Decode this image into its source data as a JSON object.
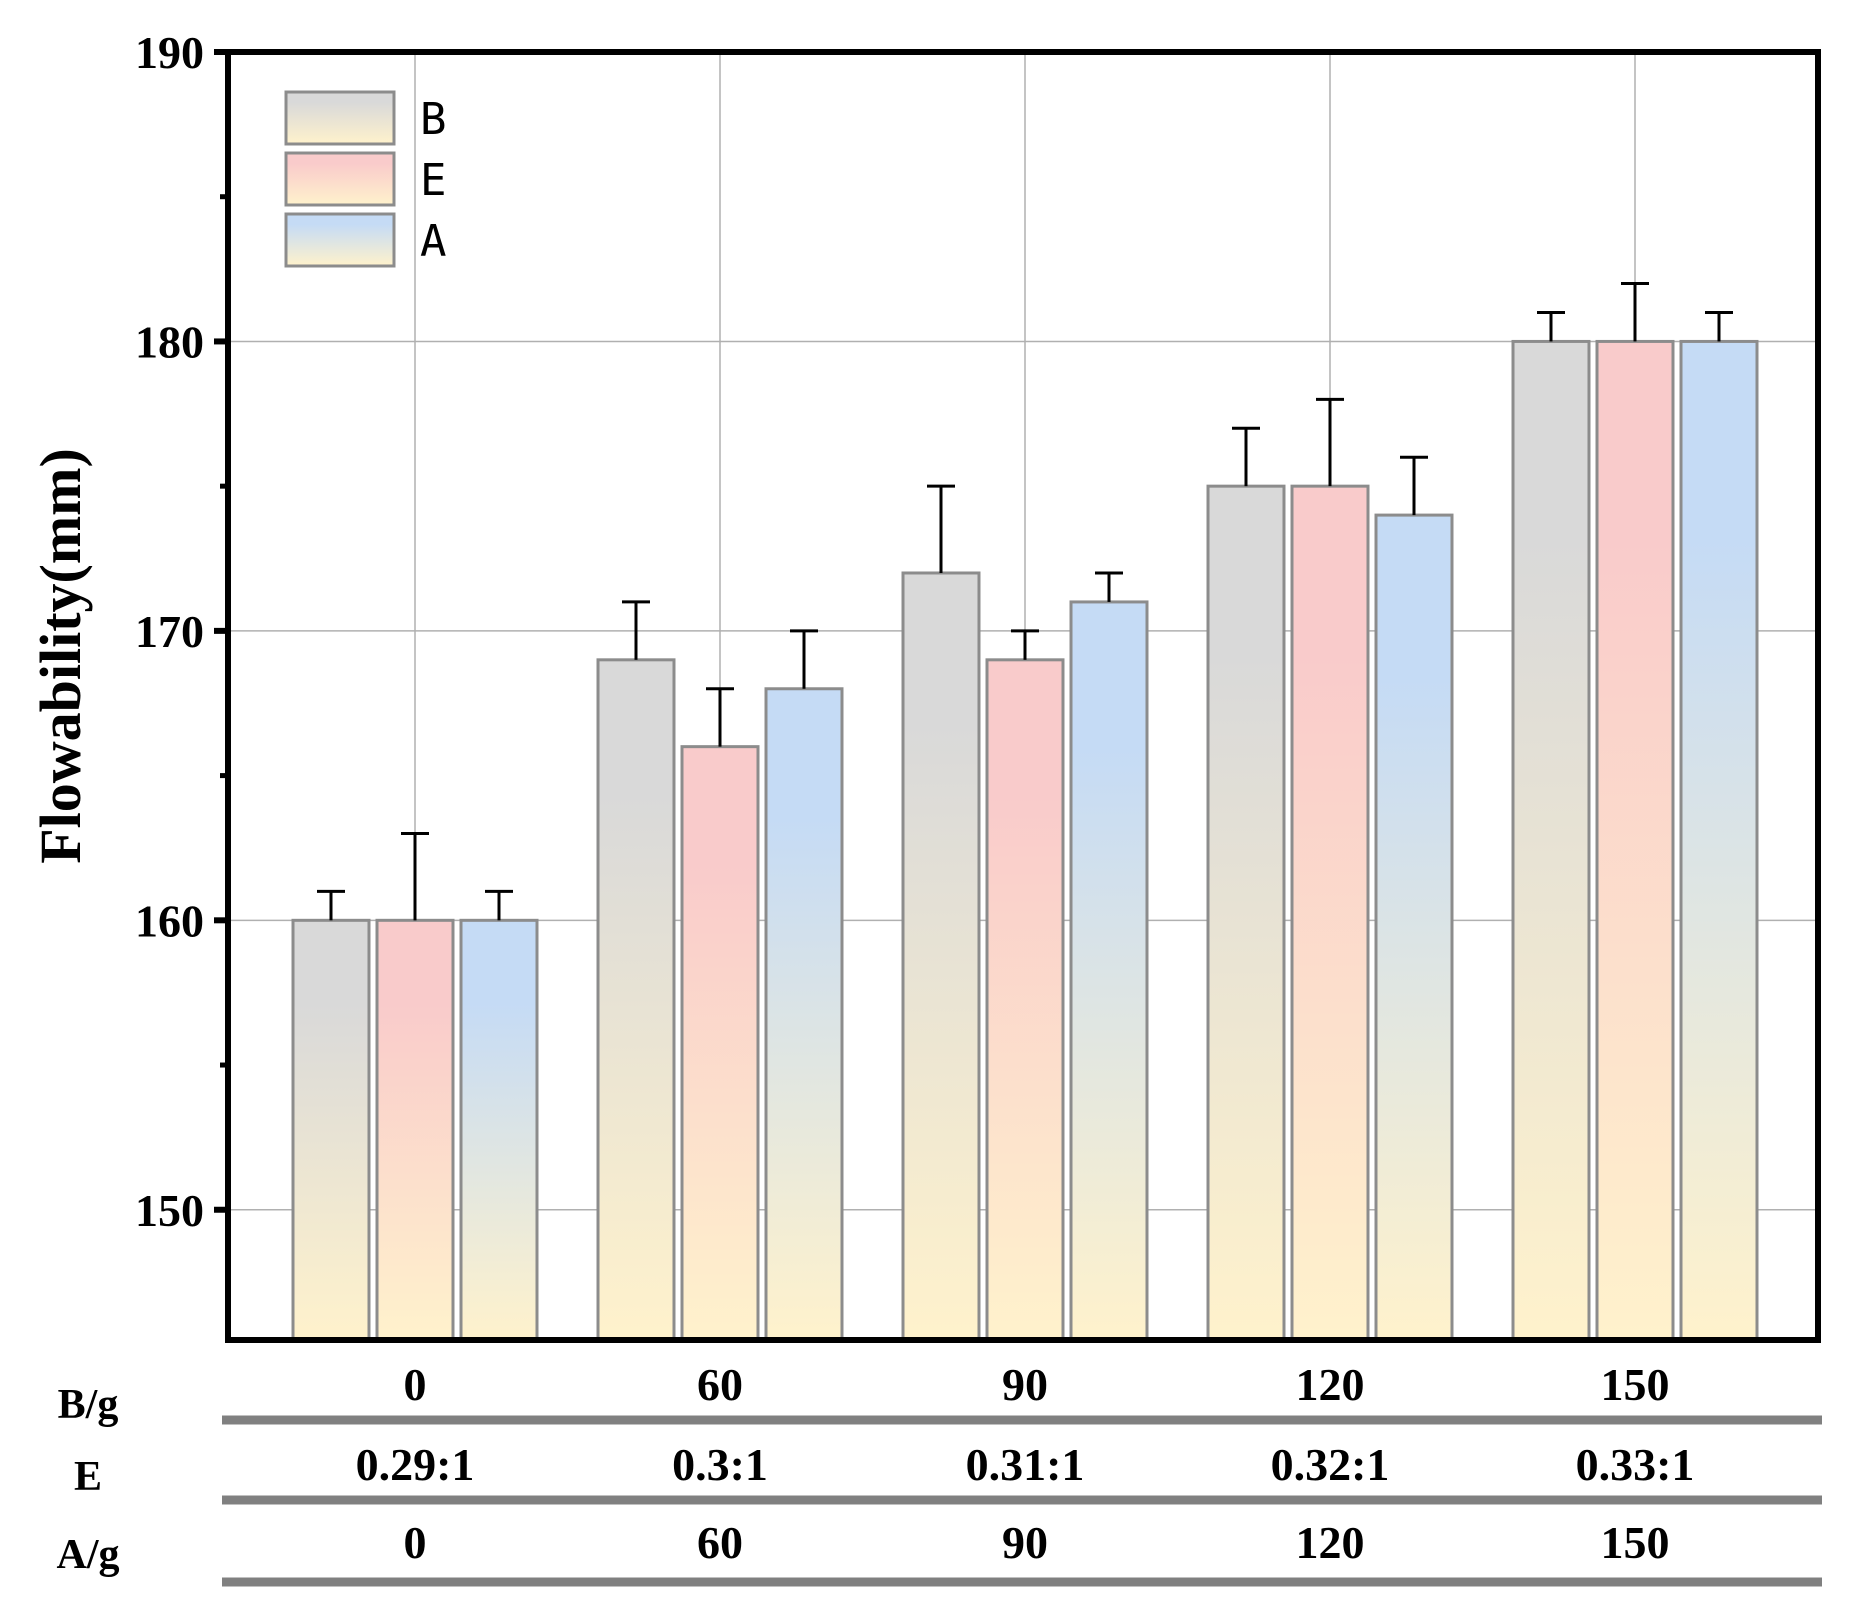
{
  "chart_data": {
    "type": "bar",
    "title": "",
    "xlabel": "",
    "ylabel": "Flowability(mm)",
    "ylim": [
      145.5,
      190
    ],
    "y_ticks": [
      150,
      160,
      170,
      180,
      190
    ],
    "grid": true,
    "legend_position": "top-left",
    "categories": [
      "0",
      "60",
      "90",
      "120",
      "150"
    ],
    "series": [
      {
        "name": "B",
        "values": [
          160,
          169,
          172,
          175,
          180
        ],
        "errors": [
          1,
          2,
          3,
          2,
          1
        ],
        "color_top": "#d9d9d9",
        "color_bottom": "#fff2cc"
      },
      {
        "name": "E",
        "values": [
          160,
          166,
          169,
          175,
          180
        ],
        "errors": [
          3,
          2,
          1,
          3,
          2
        ],
        "color_top": "#f9cbcb",
        "color_bottom": "#fff2cc"
      },
      {
        "name": "A",
        "values": [
          160,
          168,
          171,
          174,
          180
        ],
        "errors": [
          1,
          2,
          1,
          2,
          1
        ],
        "color_top": "#c5dbf5",
        "color_bottom": "#fff2cc"
      }
    ],
    "x_table": [
      {
        "label": "B/g",
        "values": [
          "0",
          "60",
          "90",
          "120",
          "150"
        ]
      },
      {
        "label": "E",
        "values": [
          "0.29:1",
          "0.3:1",
          "0.31:1",
          "0.32:1",
          "0.33:1"
        ]
      },
      {
        "label": "A/g",
        "values": [
          "0",
          "60",
          "90",
          "120",
          "150"
        ]
      }
    ]
  }
}
